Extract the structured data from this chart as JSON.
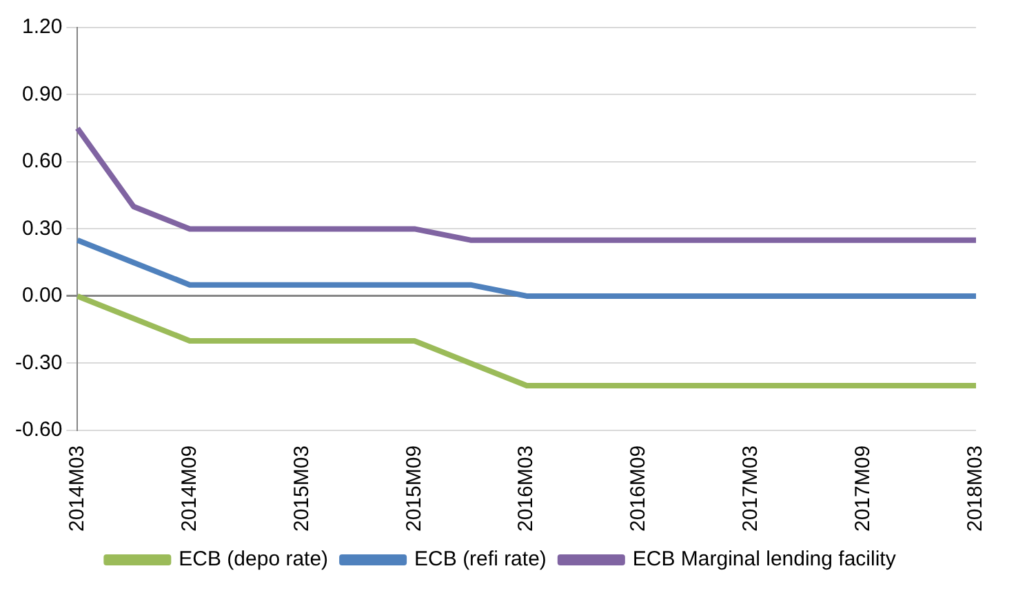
{
  "chart_data": {
    "type": "line",
    "categories": [
      "2014M03",
      null,
      "2014M09",
      null,
      "2015M03",
      null,
      "2015M09",
      null,
      "2016M03",
      null,
      "2016M09",
      null,
      "2017M03",
      null,
      "2017M09",
      null,
      "2018M03"
    ],
    "series": [
      {
        "name": "ECB (depo rate)",
        "color": "#9bbb59",
        "values": [
          0.0,
          -0.1,
          -0.2,
          -0.2,
          -0.2,
          -0.2,
          -0.2,
          -0.3,
          -0.4,
          -0.4,
          -0.4,
          -0.4,
          -0.4,
          -0.4,
          -0.4,
          -0.4,
          -0.4
        ]
      },
      {
        "name": "ECB (refi rate)",
        "color": "#4f81bd",
        "values": [
          0.25,
          0.15,
          0.05,
          0.05,
          0.05,
          0.05,
          0.05,
          0.05,
          0.0,
          0.0,
          0.0,
          0.0,
          0.0,
          0.0,
          0.0,
          0.0,
          0.0
        ]
      },
      {
        "name": "ECB Marginal lending facility",
        "color": "#8064a2",
        "values": [
          0.75,
          0.4,
          0.3,
          0.3,
          0.3,
          0.3,
          0.3,
          0.25,
          0.25,
          0.25,
          0.25,
          0.25,
          0.25,
          0.25,
          0.25,
          0.25,
          0.25
        ]
      }
    ],
    "ylim": [
      -0.6,
      1.2
    ],
    "yticks": [
      {
        "value": -0.6,
        "label": "-0.60"
      },
      {
        "value": -0.3,
        "label": "-0.30"
      },
      {
        "value": 0,
        "label": "0.00"
      },
      {
        "value": 0.3,
        "label": "0.30"
      },
      {
        "value": 0.6,
        "label": "0.60"
      },
      {
        "value": 0.9,
        "label": "0.90"
      },
      {
        "value": 1.2,
        "label": "1.20"
      }
    ],
    "grid": "y",
    "legend": "bottom",
    "marker": "none",
    "line_style": "solid"
  }
}
